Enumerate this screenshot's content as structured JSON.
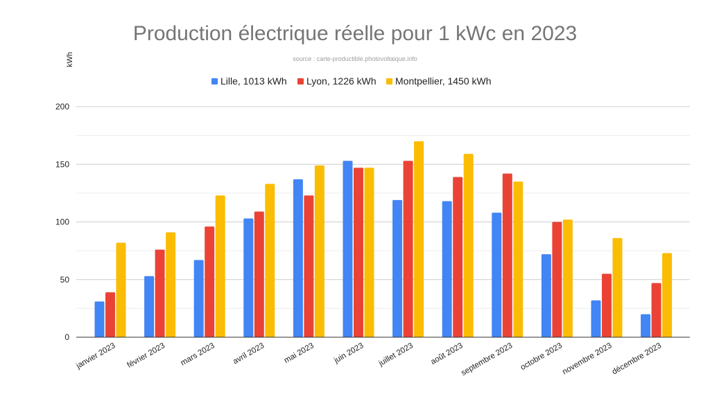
{
  "chart_data": {
    "type": "bar",
    "title": "Production électrique réelle pour 1 kWc en 2023",
    "subtitle": "source : carte-productible.photovoltaique.info",
    "xlabel": "",
    "ylabel": "kWh",
    "ylim": [
      0,
      200
    ],
    "yticks": [
      "0",
      "50",
      "100",
      "150",
      "200"
    ],
    "grid": true,
    "legend_position": "top",
    "categories": [
      "janvier 2023",
      "février 2023",
      "mars 2023",
      "avril 2023",
      "mai 2023",
      "juin 2023",
      "juillet 2023",
      "août 2023",
      "septembre 2023",
      "octobre 2023",
      "novembre 2023",
      "décembre 2023"
    ],
    "series": [
      {
        "name": "Lille, 1013 kWh",
        "color": "#4285f4",
        "values": [
          31,
          53,
          67,
          103,
          137,
          153,
          119,
          118,
          108,
          72,
          32,
          20
        ]
      },
      {
        "name": "Lyon, 1226 kWh",
        "color": "#ea4335",
        "values": [
          39,
          76,
          96,
          109,
          123,
          147,
          153,
          139,
          142,
          100,
          55,
          47
        ]
      },
      {
        "name": "Montpellier, 1450 kWh",
        "color": "#fbbc04",
        "values": [
          82,
          91,
          123,
          133,
          149,
          147,
          170,
          159,
          135,
          102,
          86,
          73
        ]
      }
    ]
  }
}
